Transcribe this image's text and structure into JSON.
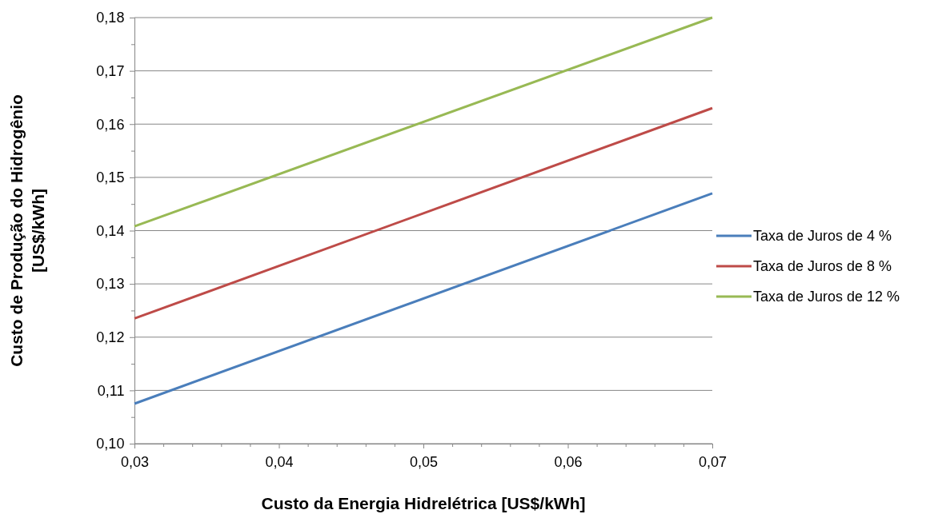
{
  "chart_data": {
    "type": "line",
    "xlabel": "Custo da Energia Hidrelétrica [US$/kWh]",
    "ylabel": "Custo de Produção do Hidrogênio\n[US$/kWh]",
    "x": [
      0.03,
      0.07
    ],
    "series": [
      {
        "name": "Taxa de Juros de 4 %",
        "color": "#4a7ebb",
        "values": [
          0.1075,
          0.147
        ]
      },
      {
        "name": "Taxa de Juros de 8 %",
        "color": "#be4b48",
        "values": [
          0.1235,
          0.163
        ]
      },
      {
        "name": "Taxa de Juros de 12 %",
        "color": "#98b954",
        "values": [
          0.1408,
          0.18
        ]
      }
    ],
    "xlim": [
      0.03,
      0.07
    ],
    "xticks": [
      {
        "value": 0.03,
        "label": "0,03"
      },
      {
        "value": 0.032,
        "label": null
      },
      {
        "value": 0.034,
        "label": null
      },
      {
        "value": 0.036,
        "label": null
      },
      {
        "value": 0.038,
        "label": null
      },
      {
        "value": 0.04,
        "label": "0,04"
      },
      {
        "value": 0.042,
        "label": null
      },
      {
        "value": 0.044,
        "label": null
      },
      {
        "value": 0.046,
        "label": null
      },
      {
        "value": 0.048,
        "label": null
      },
      {
        "value": 0.05,
        "label": "0,05"
      },
      {
        "value": 0.052,
        "label": null
      },
      {
        "value": 0.054,
        "label": null
      },
      {
        "value": 0.056,
        "label": null
      },
      {
        "value": 0.058,
        "label": null
      },
      {
        "value": 0.06,
        "label": "0,06"
      },
      {
        "value": 0.062,
        "label": null
      },
      {
        "value": 0.064,
        "label": null
      },
      {
        "value": 0.066,
        "label": null
      },
      {
        "value": 0.068,
        "label": null
      },
      {
        "value": 0.07,
        "label": "0,07"
      }
    ],
    "ylim": [
      0.1,
      0.18
    ],
    "yticks": [
      {
        "value": 0.1,
        "label": "0,10"
      },
      {
        "value": 0.105,
        "label": null
      },
      {
        "value": 0.11,
        "label": "0,11"
      },
      {
        "value": 0.115,
        "label": null
      },
      {
        "value": 0.12,
        "label": "0,12"
      },
      {
        "value": 0.125,
        "label": null
      },
      {
        "value": 0.13,
        "label": "0,13"
      },
      {
        "value": 0.135,
        "label": null
      },
      {
        "value": 0.14,
        "label": "0,14"
      },
      {
        "value": 0.145,
        "label": null
      },
      {
        "value": 0.15,
        "label": "0,15"
      },
      {
        "value": 0.155,
        "label": null
      },
      {
        "value": 0.16,
        "label": "0,16"
      },
      {
        "value": 0.165,
        "label": null
      },
      {
        "value": 0.17,
        "label": "0,17"
      },
      {
        "value": 0.175,
        "label": null
      },
      {
        "value": 0.18,
        "label": "0,18"
      }
    ],
    "grid": "y",
    "legend": "right",
    "marker": "none",
    "line_style": "solid"
  }
}
